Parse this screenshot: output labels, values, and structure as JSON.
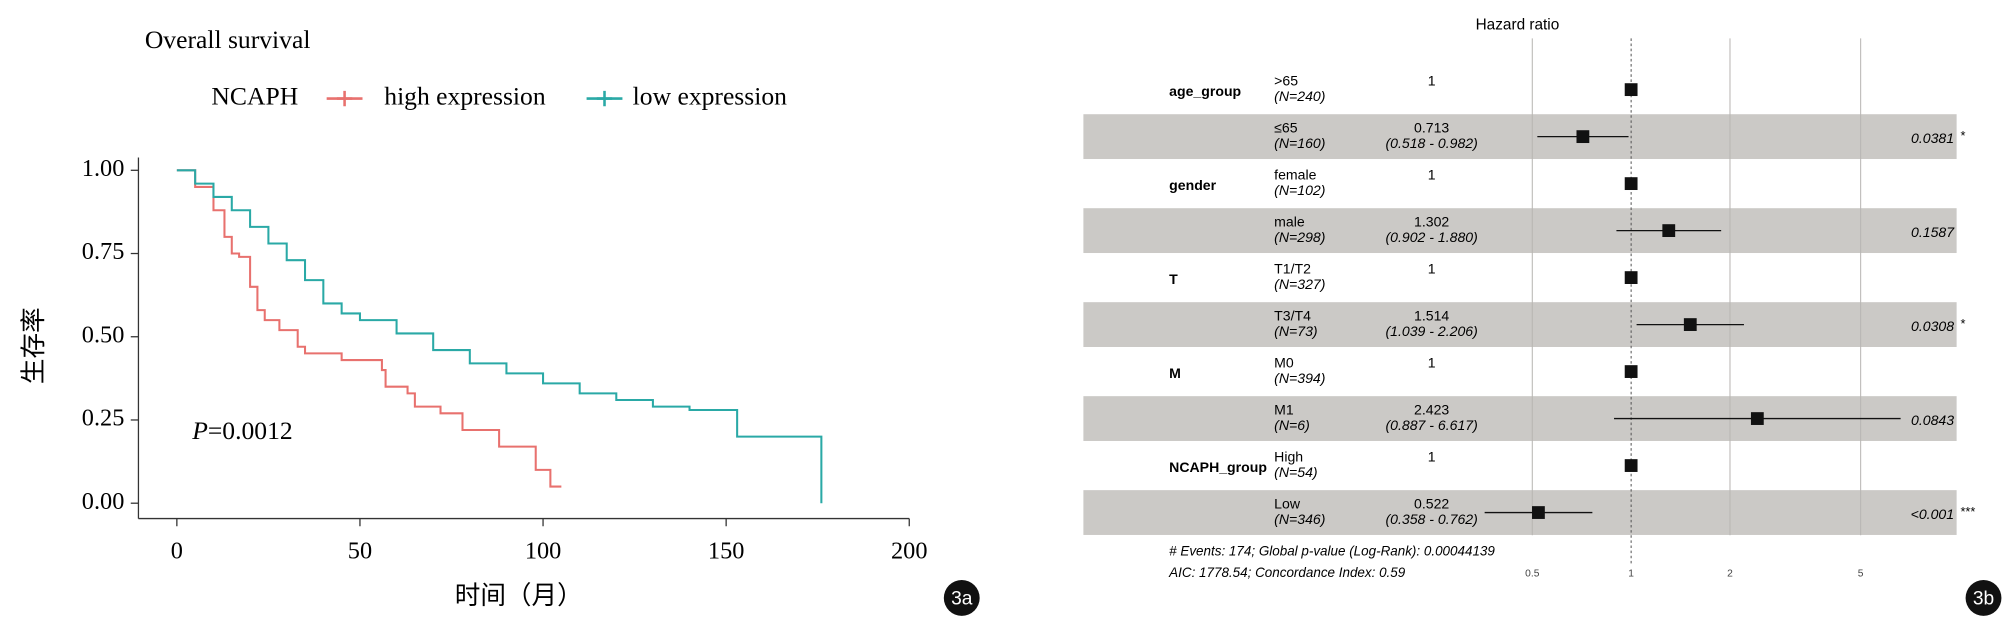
{
  "chart_data": [
    {
      "type": "line",
      "step": true,
      "title": "Overall survival",
      "legend_title": "NCAPH",
      "xlabel": "时间（月）",
      "ylabel": "生存率",
      "annotation": {
        "italic": "P",
        "text": "=0.0012"
      },
      "xlim": [
        0,
        200
      ],
      "xticks": [
        0,
        50,
        100,
        150,
        200
      ],
      "ylim": [
        0,
        1
      ],
      "yticks": [
        {
          "value": 0,
          "label": "0.00"
        },
        {
          "value": 0.25,
          "label": "0.25"
        },
        {
          "value": 0.5,
          "label": "0.50"
        },
        {
          "value": 0.75,
          "label": "0.75"
        },
        {
          "value": 1,
          "label": "1.00"
        }
      ],
      "series": [
        {
          "name": "high expression",
          "color": "#e8716e",
          "x": [
            0,
            5,
            10,
            13,
            15,
            17,
            20,
            22,
            24,
            28,
            33,
            35,
            45,
            56,
            57,
            63,
            65,
            72,
            78,
            88,
            98,
            102,
            105
          ],
          "values": [
            1,
            0.95,
            0.88,
            0.8,
            0.75,
            0.74,
            0.65,
            0.58,
            0.55,
            0.52,
            0.47,
            0.45,
            0.43,
            0.4,
            0.35,
            0.33,
            0.29,
            0.27,
            0.22,
            0.17,
            0.1,
            0.05,
            0.05
          ]
        },
        {
          "name": "low expression",
          "color": "#2aa9a6",
          "x": [
            0,
            5,
            10,
            15,
            20,
            25,
            30,
            35,
            40,
            45,
            50,
            60,
            70,
            80,
            90,
            100,
            110,
            120,
            130,
            140,
            150,
            153,
            175,
            176
          ],
          "values": [
            1,
            0.96,
            0.92,
            0.88,
            0.83,
            0.78,
            0.73,
            0.67,
            0.6,
            0.57,
            0.55,
            0.51,
            0.46,
            0.42,
            0.39,
            0.36,
            0.33,
            0.31,
            0.29,
            0.28,
            0.28,
            0.2,
            0.2,
            0
          ]
        }
      ]
    },
    {
      "type": "forest",
      "title": "Hazard ratio",
      "log_scale": true,
      "xlim": [
        0.275,
        9.8
      ],
      "xticks": [
        0.5,
        1,
        2,
        5
      ],
      "rows": [
        {
          "group": "age_group",
          "level": ">65",
          "n": "(N=240)",
          "hr": 1
        },
        {
          "level": "≤65",
          "n": "(N=160)",
          "hr": 0.713,
          "ci": "(0.518 - 0.982)",
          "ci_low": 0.518,
          "ci_high": 0.982,
          "p": "0.0381",
          "stars": "*"
        },
        {
          "group": "gender",
          "level": "female",
          "n": "(N=102)",
          "hr": 1
        },
        {
          "level": "male",
          "n": "(N=298)",
          "hr": 1.302,
          "ci": "(0.902 - 1.880)",
          "ci_low": 0.902,
          "ci_high": 1.88,
          "p": "0.1587"
        },
        {
          "group": "T",
          "level": "T1/T2",
          "n": "(N=327)",
          "hr": 1
        },
        {
          "level": "T3/T4",
          "n": "(N=73)",
          "hr": 1.514,
          "ci": "(1.039 - 2.206)",
          "ci_low": 1.039,
          "ci_high": 2.206,
          "p": "0.0308",
          "stars": "*"
        },
        {
          "group": "M",
          "level": "M0",
          "n": "(N=394)",
          "hr": 1
        },
        {
          "level": "M1",
          "n": "(N=6)",
          "hr": 2.423,
          "ci": "(0.887 - 6.617)",
          "ci_low": 0.887,
          "ci_high": 6.617,
          "p": "0.0843"
        },
        {
          "group": "NCAPH_group",
          "level": "High",
          "n": "(N=54)",
          "hr": 1
        },
        {
          "level": "Low",
          "n": "(N=346)",
          "hr": 0.522,
          "ci": "(0.358 - 0.762)",
          "ci_low": 0.358,
          "ci_high": 0.762,
          "p": "<0.001",
          "stars": "***"
        }
      ],
      "footer": [
        "# Events: 174; Global p-value (Log-Rank): 0.00044139",
        "AIC: 1778.54; Concordance Index: 0.59"
      ]
    }
  ],
  "panel_labels": [
    "3a",
    "3b"
  ]
}
